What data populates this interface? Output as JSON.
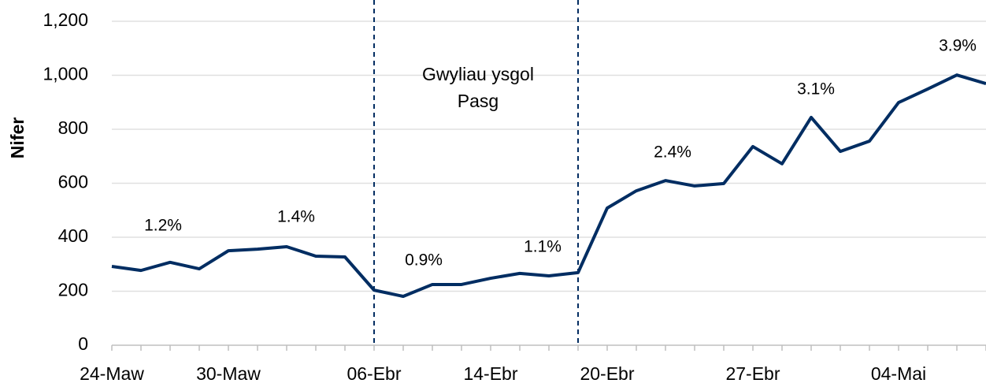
{
  "chart_data": {
    "type": "line",
    "y_label": "Nifer",
    "categories": [
      "24-Maw",
      null,
      null,
      null,
      "30-Maw",
      null,
      null,
      null,
      null,
      "06-Ebr",
      null,
      null,
      null,
      "14-Ebr",
      null,
      null,
      null,
      "20-Ebr",
      null,
      null,
      null,
      null,
      "27-Ebr",
      null,
      null,
      null,
      null,
      "04-Mai",
      null,
      null,
      null
    ],
    "series": [
      {
        "name": "Nifer",
        "color": "#002D62",
        "values": [
          292,
          277,
          307,
          283,
          350,
          356,
          365,
          330,
          327,
          204,
          181,
          225,
          225,
          248,
          266,
          257,
          269,
          508,
          572,
          610,
          590,
          599,
          736,
          672,
          844,
          718,
          756,
          899,
          949,
          1001,
          969
        ]
      }
    ],
    "ylim": [
      0,
      1200
    ],
    "yticks": [
      0,
      200,
      400,
      600,
      800,
      {
        "value": 1000,
        "label": "1,000"
      },
      {
        "value": 1200,
        "label": "1,200"
      }
    ],
    "grid": true,
    "annotations": [
      "1.2%",
      "1.4%",
      "0.9%",
      "1.1%",
      "2.4%",
      "3.1%",
      "3.9%"
    ],
    "period_label": [
      "Gwyliau ysgol",
      "Pasg"
    ]
  }
}
